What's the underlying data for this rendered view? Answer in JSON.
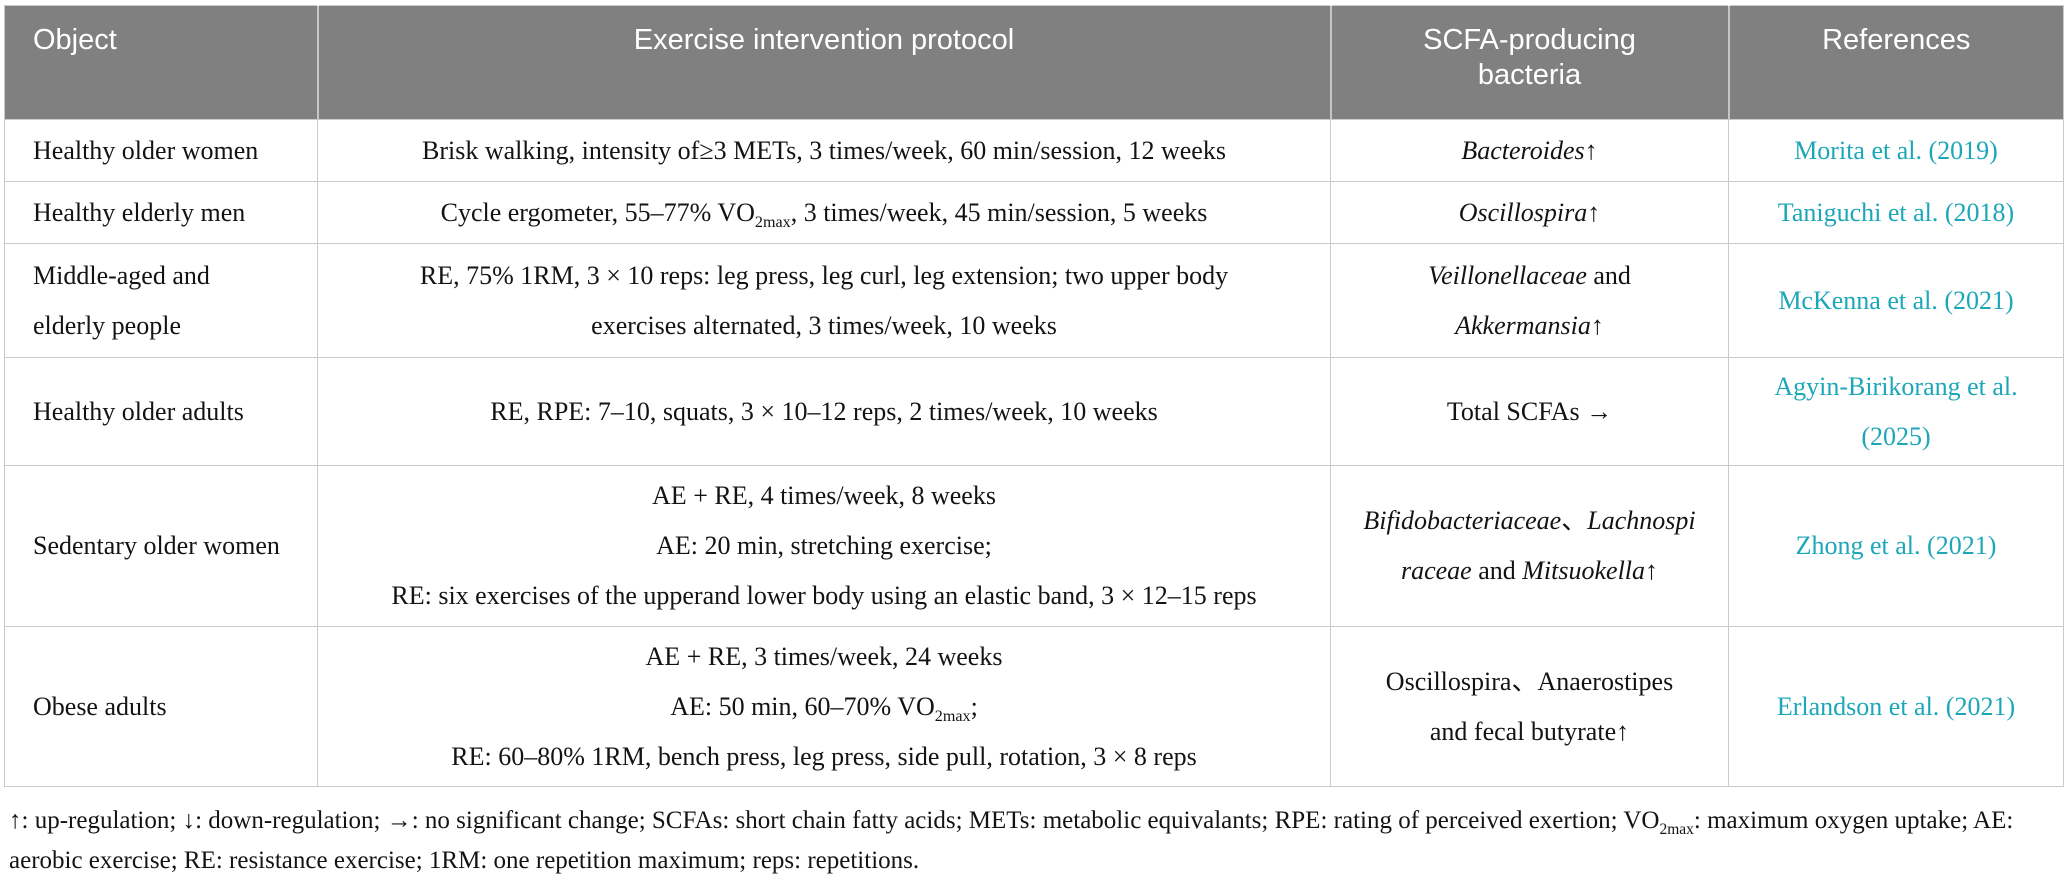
{
  "colors": {
    "header_bg": "#808080",
    "header_text": "#ffffff",
    "link": "#1ca7b8",
    "border": "#cbcbcb",
    "body_text": "#131313"
  },
  "table": {
    "columns": [
      {
        "label": "Object"
      },
      {
        "label": "Exercise intervention protocol"
      },
      {
        "label": "SCFA-producing bacteria"
      },
      {
        "label": "References"
      }
    ],
    "rows": [
      {
        "object": [
          "Healthy older women"
        ],
        "protocol": [
          [
            {
              "t": "Brisk walking, intensity of≥3 METs, 3 times/week, 60 min/session, 12 weeks"
            }
          ]
        ],
        "bacteria": [
          [
            {
              "t": "Bacteroides",
              "i": true
            },
            {
              "t": "↑"
            }
          ]
        ],
        "reference": [
          "Morita et al. (2019)"
        ]
      },
      {
        "object": [
          "Healthy elderly men"
        ],
        "protocol": [
          [
            {
              "t": "Cycle ergometer, 55–77% VO"
            },
            {
              "t": "2max",
              "sub": true
            },
            {
              "t": ", 3 times/week, 45 min/session, 5 weeks"
            }
          ]
        ],
        "bacteria": [
          [
            {
              "t": "Oscillospira",
              "i": true
            },
            {
              "t": "↑"
            }
          ]
        ],
        "reference": [
          "Taniguchi et al. (2018)"
        ]
      },
      {
        "object": [
          "Middle-aged and",
          "elderly people"
        ],
        "protocol": [
          [
            {
              "t": "RE, 75% 1RM, 3 × 10 reps: leg press, leg curl, leg extension; two upper body"
            }
          ],
          [
            {
              "t": "exercises alternated, 3 times/week, 10 weeks"
            }
          ]
        ],
        "bacteria": [
          [
            {
              "t": "Veillonellaceae",
              "i": true
            },
            {
              "t": " and"
            }
          ],
          [
            {
              "t": "Akkermansia",
              "i": true
            },
            {
              "t": "↑"
            }
          ]
        ],
        "reference": [
          "McKenna et al. (2021)"
        ]
      },
      {
        "object": [
          "Healthy older adults"
        ],
        "protocol": [
          [
            {
              "t": "RE, RPE: 7–10, squats, 3 × 10–12 reps, 2 times/week, 10 weeks"
            }
          ]
        ],
        "bacteria": [
          [
            {
              "t": "Total SCFAs →"
            }
          ]
        ],
        "reference": [
          "Agyin-Birikorang et al.",
          "(2025)"
        ]
      },
      {
        "object": [
          "Sedentary older women"
        ],
        "protocol": [
          [
            {
              "t": "AE + RE, 4 times/week, 8 weeks"
            }
          ],
          [
            {
              "t": "AE: 20 min, stretching exercise;"
            }
          ],
          [
            {
              "t": "RE: six exercises of the upperand lower body using an elastic band, 3 × 12–15 reps"
            }
          ]
        ],
        "bacteria": [
          [
            {
              "t": "Bifidobacteriaceae",
              "i": true
            },
            {
              "t": "、"
            },
            {
              "t": "Lachnospi",
              "i": true
            }
          ],
          [
            {
              "t": "raceae",
              "i": true
            },
            {
              "t": " and "
            },
            {
              "t": "Mitsuokella",
              "i": true
            },
            {
              "t": "↑"
            }
          ]
        ],
        "reference": [
          "Zhong et al. (2021)"
        ]
      },
      {
        "object": [
          "Obese adults"
        ],
        "protocol": [
          [
            {
              "t": "AE + RE, 3 times/week, 24 weeks"
            }
          ],
          [
            {
              "t": "AE: 50 min, 60–70% VO"
            },
            {
              "t": "2max",
              "sub": true
            },
            {
              "t": ";"
            }
          ],
          [
            {
              "t": "RE: 60–80% 1RM, bench press, leg press, side pull, rotation, 3 × 8 reps"
            }
          ]
        ],
        "bacteria": [
          [
            {
              "t": "Oscillospira、Anaerostipes"
            }
          ],
          [
            {
              "t": "and fecal butyrate↑"
            }
          ]
        ],
        "reference": [
          "Erlandson et al. (2021)"
        ]
      }
    ]
  },
  "footnote": {
    "segments": [
      {
        "t": "↑: up-regulation; ↓: down-regulation; →: no significant change; SCFAs: short chain fatty acids; METs: metabolic equivalants; RPE: rating of perceived exertion; VO"
      },
      {
        "t": "2max",
        "sub": true
      },
      {
        "t": ": maximum oxygen uptake; AE: aerobic exercise; RE: resistance exercise; 1RM: one repetition maximum; reps: repetitions."
      }
    ]
  }
}
